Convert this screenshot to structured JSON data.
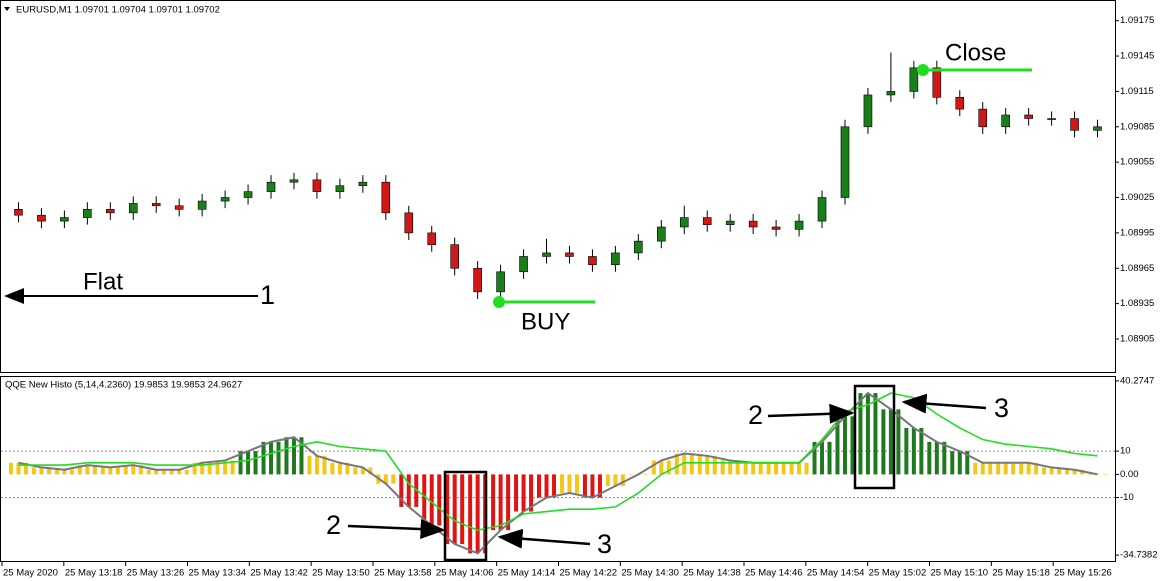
{
  "chart_data": [
    {
      "type": "candlestick",
      "title": "EURUSD,M1  1.09701 1.09704 1.09701 1.09702",
      "up_color": "#1a7f1a",
      "down_color": "#d01818",
      "open": [
        1.09015,
        1.0901,
        1.09005,
        1.09008,
        1.09015,
        1.09012,
        1.0902,
        1.09018,
        1.09015,
        1.09022,
        1.09025,
        1.0903,
        1.09038,
        1.0904,
        1.0903,
        1.09035,
        1.09038,
        1.09012,
        1.08995,
        1.08985,
        1.08965,
        1.08945,
        1.08962,
        1.08975,
        1.08978,
        1.08975,
        1.08968,
        1.08978,
        1.08988,
        1.09,
        1.09008,
        1.09002,
        1.09005,
        1.09,
        1.08998,
        1.09005,
        1.09025,
        1.09085,
        1.09112,
        1.09115,
        1.09135,
        1.0911,
        1.091,
        1.09085,
        1.09095,
        1.09092,
        1.09092,
        1.09082
      ],
      "high": [
        1.09021,
        1.09016,
        1.09014,
        1.09021,
        1.09021,
        1.09026,
        1.09026,
        1.09024,
        1.09028,
        1.09031,
        1.09036,
        1.09044,
        1.09046,
        1.09046,
        1.09041,
        1.09044,
        1.09044,
        1.09018,
        1.09001,
        1.08991,
        1.08971,
        1.08968,
        1.08981,
        1.0899,
        1.08984,
        1.08981,
        1.08984,
        1.08994,
        1.09006,
        1.09018,
        1.09014,
        1.09011,
        1.09011,
        1.09006,
        1.09011,
        1.09031,
        1.09091,
        1.09118,
        1.09148,
        1.09141,
        1.09141,
        1.09116,
        1.09106,
        1.09101,
        1.09101,
        1.09098,
        1.09098,
        1.09091
      ],
      "low": [
        1.09004,
        1.08999,
        1.08999,
        1.09002,
        1.09006,
        1.09006,
        1.09012,
        1.09009,
        1.09009,
        1.09016,
        1.09019,
        1.09024,
        1.09032,
        1.09024,
        1.09024,
        1.09029,
        1.09006,
        1.08989,
        1.08979,
        1.08959,
        1.08939,
        1.08939,
        1.08956,
        1.08969,
        1.08969,
        1.08962,
        1.08962,
        1.08972,
        1.08982,
        1.08994,
        1.08996,
        1.08996,
        1.08994,
        1.08992,
        1.08992,
        1.08999,
        1.09019,
        1.09079,
        1.09106,
        1.09109,
        1.09104,
        1.09094,
        1.09079,
        1.09079,
        1.09086,
        1.09086,
        1.09076,
        1.09076
      ],
      "close": [
        1.0901,
        1.09005,
        1.09008,
        1.09015,
        1.09012,
        1.0902,
        1.09018,
        1.09015,
        1.09022,
        1.09025,
        1.0903,
        1.09038,
        1.0904,
        1.0903,
        1.09035,
        1.09038,
        1.09012,
        1.08995,
        1.08985,
        1.08965,
        1.08945,
        1.08962,
        1.08975,
        1.08978,
        1.08975,
        1.08968,
        1.08978,
        1.08988,
        1.09,
        1.09008,
        1.09002,
        1.09005,
        1.09,
        1.08998,
        1.09005,
        1.09025,
        1.09085,
        1.09112,
        1.09115,
        1.09135,
        1.0911,
        1.091,
        1.09085,
        1.09095,
        1.09092,
        1.09092,
        1.09082,
        1.09085
      ],
      "ylim": [
        1.08877,
        1.0919
      ],
      "yticks": [
        1.09175,
        1.09145,
        1.09115,
        1.09085,
        1.09055,
        1.09025,
        1.08995,
        1.08965,
        1.08935,
        1.08905
      ],
      "annotations": [
        "Flat",
        "1",
        "BUY",
        "Close"
      ]
    },
    {
      "type": "histogram-oscillator",
      "title": "QQE New Histo (5,14,4.2360) 19.9853 19.9853 24.9627",
      "up_color": "#1f7a1f",
      "down_color": "#e01414",
      "neutral_color": "#f5c518",
      "series": [
        {
          "name": "histogram",
          "values": [
            5,
            3,
            2,
            4,
            3,
            4,
            2,
            2,
            5,
            6,
            10,
            14,
            16,
            8,
            5,
            3,
            -4,
            -14,
            -22,
            -30,
            -34,
            -24,
            -16,
            -10,
            -8,
            -10,
            -5,
            0,
            6,
            9,
            8,
            6,
            5,
            5,
            5,
            14,
            25,
            35,
            28,
            20,
            14,
            10,
            5,
            5,
            5,
            3,
            2,
            0
          ]
        },
        {
          "name": "signal",
          "color": "#22dd22",
          "values": [
            4,
            4,
            4,
            5,
            5,
            5,
            4,
            4,
            4,
            5,
            6,
            9,
            12,
            14,
            12,
            11,
            10,
            -4,
            -12,
            -20,
            -24,
            -22,
            -17,
            -16,
            -15,
            -15,
            -14,
            -8,
            0,
            5,
            5,
            5,
            5,
            5,
            5,
            15,
            27,
            30,
            35,
            33,
            26,
            20,
            15,
            13,
            12,
            11,
            9,
            8
          ]
        }
      ],
      "line_color": "#777777",
      "ylim": [
        -36,
        41.5
      ],
      "yticks": [
        40.2747,
        10,
        {
          "value": 0,
          "label": "0.00"
        },
        -10,
        -34.7382
      ],
      "levels": [
        10,
        -10
      ],
      "annotations": [
        "2",
        "3",
        "2",
        "3"
      ]
    }
  ],
  "x_labels": [
    "25 May 2020",
    "25 May 13:18",
    "25 May 13:26",
    "25 May 13:34",
    "25 May 13:42",
    "25 May 13:50",
    "25 May 13:58",
    "25 May 14:06",
    "25 May 14:14",
    "25 May 14:22",
    "25 May 14:30",
    "25 May 14:38",
    "25 May 14:46",
    "25 May 14:54",
    "25 May 15:02",
    "25 May 15:10",
    "25 May 15:18",
    "25 May 15:26"
  ]
}
